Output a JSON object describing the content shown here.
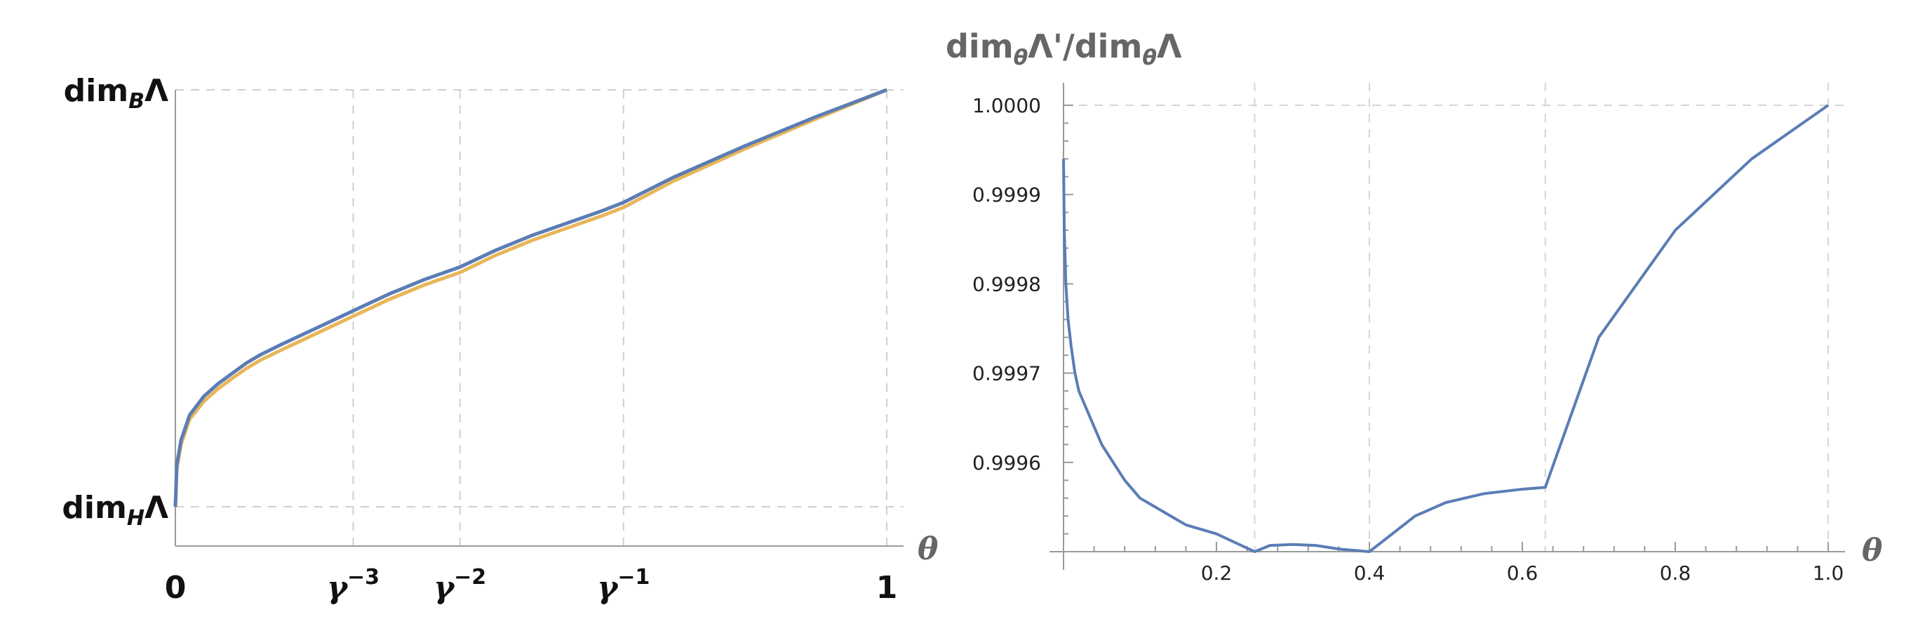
{
  "chart_data": [
    {
      "type": "line",
      "xlabel": "θ",
      "ylabel": "",
      "grid": "dashed at ticks",
      "xlim": [
        0,
        1
      ],
      "ylim": [
        0,
        1
      ],
      "x_ticks": [
        {
          "value": 0,
          "label": "0"
        },
        {
          "value": 0.25,
          "base": "γ",
          "exp": "−3"
        },
        {
          "value": 0.4,
          "base": "γ",
          "exp": "−2"
        },
        {
          "value": 0.63,
          "base": "γ",
          "exp": "−1"
        },
        {
          "value": 1,
          "label": "1"
        }
      ],
      "y_ticks": [
        {
          "value": 0,
          "main": "dim",
          "sub": "H",
          "tail": "Λ"
        },
        {
          "value": 1,
          "main": "dim",
          "sub": "B",
          "tail": "Λ"
        }
      ],
      "series": [
        {
          "color": "#5b7db5",
          "x": [
            0,
            0.002,
            0.008,
            0.02,
            0.04,
            0.06,
            0.08,
            0.1,
            0.12,
            0.15,
            0.2,
            0.25,
            0.3,
            0.35,
            0.4,
            0.45,
            0.5,
            0.55,
            0.6,
            0.63,
            0.7,
            0.8,
            0.9,
            1.0
          ],
          "y": [
            0,
            0.1,
            0.16,
            0.22,
            0.265,
            0.295,
            0.32,
            0.345,
            0.365,
            0.39,
            0.43,
            0.47,
            0.51,
            0.545,
            0.575,
            0.615,
            0.65,
            0.68,
            0.71,
            0.73,
            0.79,
            0.865,
            0.935,
            1.0
          ]
        },
        {
          "color": "#e8b65a",
          "x": [
            0,
            0.002,
            0.008,
            0.02,
            0.04,
            0.06,
            0.08,
            0.1,
            0.12,
            0.15,
            0.2,
            0.25,
            0.3,
            0.35,
            0.4,
            0.45,
            0.5,
            0.55,
            0.6,
            0.63,
            0.7,
            0.8,
            0.9,
            1.0
          ],
          "y": [
            0,
            0.09,
            0.15,
            0.21,
            0.253,
            0.283,
            0.308,
            0.332,
            0.352,
            0.377,
            0.417,
            0.457,
            0.497,
            0.532,
            0.562,
            0.603,
            0.638,
            0.668,
            0.698,
            0.718,
            0.781,
            0.858,
            0.93,
            1.0
          ]
        }
      ]
    },
    {
      "type": "line",
      "title_main": "dim",
      "title_sub": "θ",
      "title_mid": "Λ'/dim",
      "title_sub2": "θ",
      "title_end": "Λ",
      "xlabel": "θ",
      "grid": "dashed at 0.25, 0.4, 0.63, 1.0 and y=1.0000",
      "xlim": [
        0,
        1.0
      ],
      "ylim": [
        0.9995,
        1.0
      ],
      "x_ticks": [
        "0.2",
        "0.4",
        "0.6",
        "0.8",
        "1.0"
      ],
      "y_ticks": [
        "0.9996",
        "0.9997",
        "0.9998",
        "0.9999",
        "1.0000"
      ],
      "series": [
        {
          "color": "#5b7db5",
          "x": [
            0,
            0.001,
            0.003,
            0.006,
            0.01,
            0.015,
            0.02,
            0.03,
            0.04,
            0.05,
            0.065,
            0.08,
            0.1,
            0.12,
            0.14,
            0.16,
            0.2,
            0.25,
            0.27,
            0.3,
            0.33,
            0.36,
            0.4,
            0.43,
            0.46,
            0.5,
            0.55,
            0.6,
            0.63,
            0.7,
            0.8,
            0.9,
            1.0
          ],
          "y": [
            0.99994,
            0.99986,
            0.9998,
            0.99976,
            0.99973,
            0.9997,
            0.99968,
            0.99966,
            0.99964,
            0.99962,
            0.9996,
            0.99958,
            0.99956,
            0.99955,
            0.99954,
            0.99953,
            0.99952,
            0.9995,
            0.999507,
            0.999508,
            0.999507,
            0.999503,
            0.9995,
            0.99952,
            0.99954,
            0.999555,
            0.999565,
            0.99957,
            0.999572,
            0.99974,
            0.99986,
            0.99994,
            1.0
          ]
        }
      ]
    }
  ]
}
